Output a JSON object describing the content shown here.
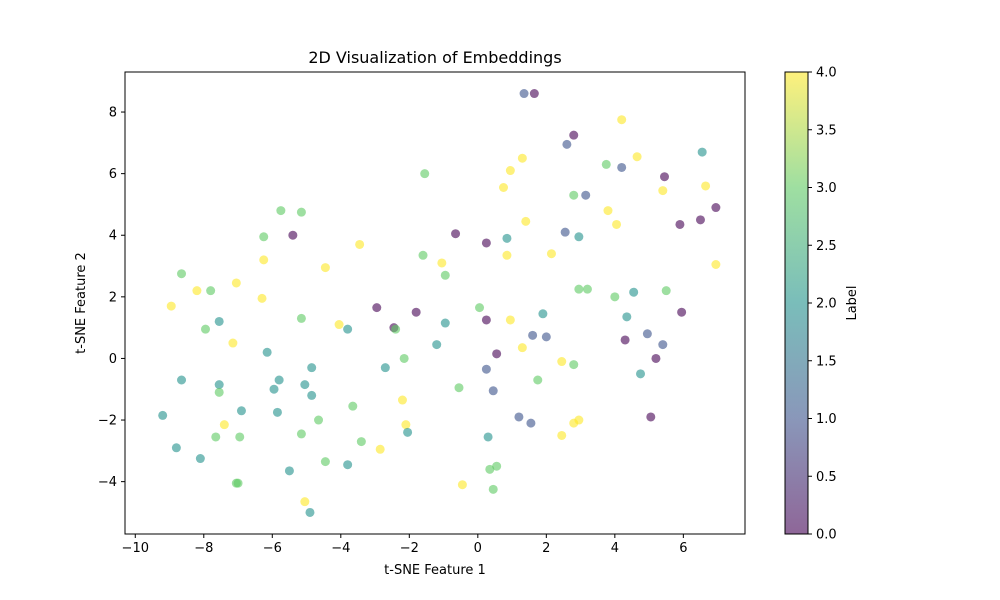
{
  "chart_data": {
    "type": "scatter",
    "title": "2D Visualization of Embeddings",
    "xlabel": "t-SNE Feature 1",
    "ylabel": "t-SNE Feature 2",
    "xlim": [
      -10.3,
      7.8
    ],
    "ylim": [
      -5.7,
      9.3
    ],
    "xticks": [
      -10,
      -8,
      -6,
      -4,
      -2,
      0,
      2,
      4,
      6
    ],
    "yticks": [
      -4,
      -2,
      0,
      2,
      4,
      6,
      8
    ],
    "colorbar": {
      "label": "Label",
      "range": [
        0.0,
        4.0
      ],
      "ticks": [
        "0.0",
        "0.5",
        "1.0",
        "1.5",
        "2.0",
        "2.5",
        "3.0",
        "3.5",
        "4.0"
      ],
      "colormap": "viridis",
      "colors": [
        "#440154",
        "#3b528b",
        "#21918c",
        "#5ec962",
        "#fde725"
      ]
    },
    "marker_alpha": 0.6,
    "grid": false,
    "points": [
      {
        "x": 1.35,
        "y": 8.6,
        "label": 1
      },
      {
        "x": 1.65,
        "y": 8.6,
        "label": 0
      },
      {
        "x": 4.2,
        "y": 7.75,
        "label": 4
      },
      {
        "x": 2.8,
        "y": 7.25,
        "label": 0
      },
      {
        "x": 2.6,
        "y": 6.95,
        "label": 1
      },
      {
        "x": 6.55,
        "y": 6.7,
        "label": 2
      },
      {
        "x": 1.3,
        "y": 6.5,
        "label": 4
      },
      {
        "x": 4.65,
        "y": 6.55,
        "label": 4
      },
      {
        "x": 3.75,
        "y": 6.3,
        "label": 3
      },
      {
        "x": 4.2,
        "y": 6.2,
        "label": 1
      },
      {
        "x": 0.95,
        "y": 6.1,
        "label": 4
      },
      {
        "x": -1.55,
        "y": 6.0,
        "label": 3
      },
      {
        "x": 5.45,
        "y": 5.9,
        "label": 0
      },
      {
        "x": 6.65,
        "y": 5.6,
        "label": 4
      },
      {
        "x": 0.75,
        "y": 5.55,
        "label": 4
      },
      {
        "x": 5.4,
        "y": 5.45,
        "label": 4
      },
      {
        "x": 3.15,
        "y": 5.3,
        "label": 1
      },
      {
        "x": 2.8,
        "y": 5.3,
        "label": 3
      },
      {
        "x": 6.95,
        "y": 4.9,
        "label": 0
      },
      {
        "x": -5.75,
        "y": 4.8,
        "label": 3
      },
      {
        "x": 3.8,
        "y": 4.8,
        "label": 4
      },
      {
        "x": -5.15,
        "y": 4.75,
        "label": 3
      },
      {
        "x": 6.5,
        "y": 4.5,
        "label": 0
      },
      {
        "x": 1.4,
        "y": 4.45,
        "label": 4
      },
      {
        "x": 4.05,
        "y": 4.35,
        "label": 4
      },
      {
        "x": 5.9,
        "y": 4.35,
        "label": 0
      },
      {
        "x": 2.55,
        "y": 4.1,
        "label": 1
      },
      {
        "x": -0.65,
        "y": 4.05,
        "label": 0
      },
      {
        "x": -5.4,
        "y": 4.0,
        "label": 0
      },
      {
        "x": -6.25,
        "y": 3.95,
        "label": 3
      },
      {
        "x": 0.85,
        "y": 3.9,
        "label": 2
      },
      {
        "x": 2.95,
        "y": 3.95,
        "label": 2
      },
      {
        "x": 0.25,
        "y": 3.75,
        "label": 0
      },
      {
        "x": -3.45,
        "y": 3.7,
        "label": 4
      },
      {
        "x": 2.15,
        "y": 3.4,
        "label": 4
      },
      {
        "x": -1.6,
        "y": 3.35,
        "label": 3
      },
      {
        "x": 0.85,
        "y": 3.35,
        "label": 4
      },
      {
        "x": -6.25,
        "y": 3.2,
        "label": 4
      },
      {
        "x": -1.05,
        "y": 3.1,
        "label": 4
      },
      {
        "x": 6.95,
        "y": 3.05,
        "label": 4
      },
      {
        "x": -4.45,
        "y": 2.95,
        "label": 4
      },
      {
        "x": -8.65,
        "y": 2.75,
        "label": 3
      },
      {
        "x": -0.95,
        "y": 2.7,
        "label": 3
      },
      {
        "x": -7.05,
        "y": 2.45,
        "label": 4
      },
      {
        "x": 2.95,
        "y": 2.25,
        "label": 3
      },
      {
        "x": 3.2,
        "y": 2.25,
        "label": 3
      },
      {
        "x": 5.5,
        "y": 2.2,
        "label": 3
      },
      {
        "x": -8.2,
        "y": 2.2,
        "label": 4
      },
      {
        "x": -7.8,
        "y": 2.2,
        "label": 3
      },
      {
        "x": 4.55,
        "y": 2.15,
        "label": 2
      },
      {
        "x": 4.0,
        "y": 2.0,
        "label": 3
      },
      {
        "x": -6.3,
        "y": 1.95,
        "label": 4
      },
      {
        "x": -8.95,
        "y": 1.7,
        "label": 4
      },
      {
        "x": -2.95,
        "y": 1.65,
        "label": 0
      },
      {
        "x": 0.05,
        "y": 1.65,
        "label": 3
      },
      {
        "x": -1.8,
        "y": 1.5,
        "label": 0
      },
      {
        "x": 5.95,
        "y": 1.5,
        "label": 0
      },
      {
        "x": 1.9,
        "y": 1.45,
        "label": 2
      },
      {
        "x": 4.35,
        "y": 1.35,
        "label": 2
      },
      {
        "x": -5.15,
        "y": 1.3,
        "label": 3
      },
      {
        "x": 0.25,
        "y": 1.25,
        "label": 0
      },
      {
        "x": 0.95,
        "y": 1.25,
        "label": 4
      },
      {
        "x": -7.55,
        "y": 1.2,
        "label": 2
      },
      {
        "x": -0.95,
        "y": 1.15,
        "label": 2
      },
      {
        "x": -4.05,
        "y": 1.1,
        "label": 4
      },
      {
        "x": -2.45,
        "y": 1.0,
        "label": 0
      },
      {
        "x": -2.4,
        "y": 0.95,
        "label": 3
      },
      {
        "x": -3.8,
        "y": 0.95,
        "label": 2
      },
      {
        "x": -7.95,
        "y": 0.95,
        "label": 3
      },
      {
        "x": 4.95,
        "y": 0.8,
        "label": 1
      },
      {
        "x": 1.6,
        "y": 0.75,
        "label": 1
      },
      {
        "x": 2.0,
        "y": 0.7,
        "label": 1
      },
      {
        "x": 4.3,
        "y": 0.6,
        "label": 0
      },
      {
        "x": -7.15,
        "y": 0.5,
        "label": 4
      },
      {
        "x": 5.4,
        "y": 0.45,
        "label": 1
      },
      {
        "x": -1.2,
        "y": 0.45,
        "label": 2
      },
      {
        "x": 1.3,
        "y": 0.35,
        "label": 4
      },
      {
        "x": -6.15,
        "y": 0.2,
        "label": 2
      },
      {
        "x": 0.55,
        "y": 0.15,
        "label": 0
      },
      {
        "x": 5.2,
        "y": 0.0,
        "label": 0
      },
      {
        "x": -2.15,
        "y": 0.0,
        "label": 3
      },
      {
        "x": 2.45,
        "y": -0.1,
        "label": 4
      },
      {
        "x": 2.8,
        "y": -0.2,
        "label": 3
      },
      {
        "x": -2.7,
        "y": -0.3,
        "label": 2
      },
      {
        "x": -4.85,
        "y": -0.3,
        "label": 2
      },
      {
        "x": 0.25,
        "y": -0.35,
        "label": 1
      },
      {
        "x": 4.75,
        "y": -0.5,
        "label": 2
      },
      {
        "x": -8.65,
        "y": -0.7,
        "label": 2
      },
      {
        "x": -5.8,
        "y": -0.7,
        "label": 2
      },
      {
        "x": 1.75,
        "y": -0.7,
        "label": 3
      },
      {
        "x": -7.55,
        "y": -0.85,
        "label": 2
      },
      {
        "x": -5.05,
        "y": -0.85,
        "label": 2
      },
      {
        "x": -0.55,
        "y": -0.95,
        "label": 3
      },
      {
        "x": -5.95,
        "y": -1.0,
        "label": 2
      },
      {
        "x": 0.45,
        "y": -1.05,
        "label": 1
      },
      {
        "x": -7.55,
        "y": -1.1,
        "label": 3
      },
      {
        "x": -4.85,
        "y": -1.2,
        "label": 2
      },
      {
        "x": -2.2,
        "y": -1.35,
        "label": 4
      },
      {
        "x": -3.65,
        "y": -1.55,
        "label": 3
      },
      {
        "x": -6.9,
        "y": -1.7,
        "label": 2
      },
      {
        "x": -5.85,
        "y": -1.75,
        "label": 2
      },
      {
        "x": -9.2,
        "y": -1.85,
        "label": 2
      },
      {
        "x": 1.2,
        "y": -1.9,
        "label": 1
      },
      {
        "x": 5.05,
        "y": -1.9,
        "label": 0
      },
      {
        "x": -4.65,
        "y": -2.0,
        "label": 3
      },
      {
        "x": 2.95,
        "y": -2.0,
        "label": 4
      },
      {
        "x": 1.55,
        "y": -2.1,
        "label": 1
      },
      {
        "x": 2.8,
        "y": -2.1,
        "label": 4
      },
      {
        "x": -7.4,
        "y": -2.15,
        "label": 4
      },
      {
        "x": -2.1,
        "y": -2.15,
        "label": 4
      },
      {
        "x": -2.05,
        "y": -2.4,
        "label": 2
      },
      {
        "x": -5.15,
        "y": -2.45,
        "label": 3
      },
      {
        "x": 2.45,
        "y": -2.5,
        "label": 4
      },
      {
        "x": -7.65,
        "y": -2.55,
        "label": 3
      },
      {
        "x": -6.95,
        "y": -2.55,
        "label": 3
      },
      {
        "x": 0.3,
        "y": -2.55,
        "label": 2
      },
      {
        "x": -3.4,
        "y": -2.7,
        "label": 3
      },
      {
        "x": -8.8,
        "y": -2.9,
        "label": 2
      },
      {
        "x": -2.85,
        "y": -2.95,
        "label": 4
      },
      {
        "x": -8.1,
        "y": -3.25,
        "label": 2
      },
      {
        "x": -4.45,
        "y": -3.35,
        "label": 3
      },
      {
        "x": -3.8,
        "y": -3.45,
        "label": 2
      },
      {
        "x": 0.55,
        "y": -3.5,
        "label": 3
      },
      {
        "x": 0.35,
        "y": -3.6,
        "label": 3
      },
      {
        "x": -5.5,
        "y": -3.65,
        "label": 2
      },
      {
        "x": -7.05,
        "y": -4.05,
        "label": 3
      },
      {
        "x": -7.0,
        "y": -4.05,
        "label": 3
      },
      {
        "x": -0.45,
        "y": -4.1,
        "label": 4
      },
      {
        "x": 0.45,
        "y": -4.25,
        "label": 3
      },
      {
        "x": -5.05,
        "y": -4.65,
        "label": 4
      },
      {
        "x": -4.9,
        "y": -5.0,
        "label": 2
      }
    ]
  }
}
